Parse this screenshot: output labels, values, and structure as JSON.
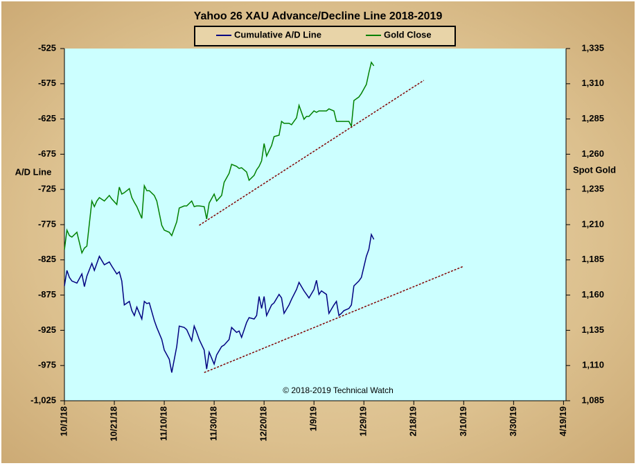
{
  "chart_data": {
    "type": "line",
    "title": "Yahoo 26 XAU Advance/Decline  Line 2018-2019",
    "ylabel": "A/D Line",
    "y2label": "Spot Gold",
    "annotation": "© 2018-2019  Technical Watch",
    "x": [
      "10/1/18",
      "10/2/18",
      "10/3/18",
      "10/4/18",
      "10/6/18",
      "10/8/18",
      "10/9/18",
      "10/10/18",
      "10/12/18",
      "10/13/18",
      "10/14/18",
      "10/15/18",
      "10/17/18",
      "10/19/18",
      "10/20/18",
      "10/22/18",
      "10/23/18",
      "10/24/18",
      "10/25/18",
      "10/27/18",
      "10/28/18",
      "10/29/18",
      "10/30/18",
      "11/1/18",
      "11/2/18",
      "11/3/18",
      "11/4/18",
      "11/6/18",
      "11/7/18",
      "11/9/18",
      "11/10/18",
      "11/12/18",
      "11/13/18",
      "11/15/18",
      "11/16/18",
      "11/18/18",
      "11/19/18",
      "11/21/18",
      "11/22/18",
      "11/23/18",
      "11/24/18",
      "11/26/18",
      "11/27/18",
      "11/28/18",
      "11/30/18",
      "12/1/18",
      "12/3/18",
      "12/4/18",
      "12/6/18",
      "12/7/18",
      "12/9/18",
      "12/10/18",
      "12/11/18",
      "12/13/18",
      "12/14/18",
      "12/16/18",
      "12/17/18",
      "12/18/18",
      "12/19/18",
      "12/20/18",
      "12/21/18",
      "12/23/18",
      "12/24/18",
      "12/26/18",
      "12/27/18",
      "12/28/18",
      "12/30/18",
      "12/31/18",
      "1/2/19",
      "1/3/19",
      "1/5/19",
      "1/6/19",
      "1/7/19",
      "1/9/19",
      "1/10/19",
      "1/11/19",
      "1/12/19",
      "1/14/19",
      "1/15/19",
      "1/17/19",
      "1/18/19",
      "1/19/19",
      "1/20/19",
      "1/21/19",
      "1/23/19",
      "1/24/19",
      "1/25/19",
      "1/27/19",
      "1/28/19",
      "1/30/19",
      "1/31/19",
      "2/1/19",
      "2/2/19"
    ],
    "series": [
      {
        "name": "Cumulative A/D Line",
        "color": "#000080",
        "axis": "y",
        "values": [
          -862,
          -840,
          -850,
          -855,
          -858,
          -845,
          -863,
          -848,
          -830,
          -840,
          -830,
          -820,
          -832,
          -828,
          -834,
          -845,
          -842,
          -855,
          -889,
          -884,
          -897,
          -904,
          -892,
          -909,
          -884,
          -887,
          -886,
          -911,
          -921,
          -938,
          -953,
          -966,
          -985,
          -948,
          -919,
          -921,
          -924,
          -940,
          -919,
          -928,
          -938,
          -953,
          -980,
          -956,
          -973,
          -960,
          -948,
          -946,
          -938,
          -921,
          -928,
          -926,
          -935,
          -914,
          -907,
          -909,
          -904,
          -877,
          -894,
          -877,
          -904,
          -889,
          -886,
          -874,
          -879,
          -901,
          -889,
          -881,
          -867,
          -857,
          -869,
          -874,
          -879,
          -867,
          -854,
          -874,
          -869,
          -874,
          -901,
          -889,
          -884,
          -904,
          -901,
          -897,
          -894,
          -889,
          -862,
          -855,
          -850,
          -820,
          -810,
          -789,
          -796
        ]
      },
      {
        "name": "Gold Close",
        "color": "#008000",
        "axis": "y2",
        "values": [
          1192.3,
          1206.1,
          1202.2,
          1201.2,
          1204.6,
          1189.9,
          1193.3,
          1194.8,
          1226.8,
          1222.8,
          1226.8,
          1229.2,
          1226.8,
          1230.7,
          1228.2,
          1224.3,
          1236.6,
          1231.7,
          1232.7,
          1235.6,
          1229.2,
          1225.8,
          1222.8,
          1214.5,
          1237.6,
          1234.1,
          1234.1,
          1230.7,
          1226.8,
          1209.5,
          1206.1,
          1204.6,
          1202.2,
          1212.0,
          1221.8,
          1223.3,
          1223.3,
          1226.8,
          1222.8,
          1223.3,
          1223.3,
          1222.8,
          1214.0,
          1225.3,
          1231.7,
          1226.8,
          1230.7,
          1240.0,
          1246.4,
          1252.8,
          1251.4,
          1249.9,
          1250.4,
          1247.4,
          1241.5,
          1245.0,
          1248.9,
          1251.4,
          1255.3,
          1267.6,
          1258.7,
          1266.1,
          1272.5,
          1273.5,
          1283.3,
          1281.9,
          1281.9,
          1280.9,
          1285.8,
          1294.7,
          1284.8,
          1286.8,
          1286.8,
          1290.7,
          1289.7,
          1290.7,
          1290.7,
          1290.7,
          1292.2,
          1290.7,
          1283.3,
          1283.3,
          1283.3,
          1283.3,
          1283.3,
          1279.9,
          1298.1,
          1300.6,
          1303.1,
          1309.5,
          1317.8,
          1325.2,
          1322.7
        ]
      }
    ],
    "trend_lines": [
      {
        "axis": "y",
        "color": "#800000",
        "x": [
          "11/26/18",
          "3/10/19"
        ],
        "values": [
          -985,
          -834
        ]
      },
      {
        "axis": "y2",
        "color": "#800000",
        "x": [
          "11/24/18",
          "2/22/19"
        ],
        "values": [
          1209.5,
          1312.4
        ]
      }
    ],
    "xlim": [
      "10/1/18",
      "4/20/19"
    ],
    "xticks": [
      "10/1/18",
      "10/21/18",
      "11/10/18",
      "11/30/18",
      "12/20/18",
      "1/9/19",
      "1/29/19",
      "2/18/19",
      "3/10/19",
      "3/30/19",
      "4/19/19"
    ],
    "ylim": [
      -1025,
      -525
    ],
    "yticks": [
      {
        "value": -1025,
        "label": "-1,025"
      },
      -975,
      -925,
      -875,
      -825,
      -775,
      -725,
      -675,
      -625,
      -575,
      -525
    ],
    "y2lim": [
      1085,
      1335
    ],
    "y2ticks": [
      {
        "value": 1085,
        "label": "1,085"
      },
      {
        "value": 1110,
        "label": "1,110"
      },
      {
        "value": 1135,
        "label": "1,135"
      },
      {
        "value": 1160,
        "label": "1,160"
      },
      {
        "value": 1185,
        "label": "1,185"
      },
      {
        "value": 1210,
        "label": "1,210"
      },
      {
        "value": 1235,
        "label": "1,235"
      },
      {
        "value": 1260,
        "label": "1,260"
      },
      {
        "value": 1285,
        "label": "1,285"
      },
      {
        "value": 1310,
        "label": "1,310"
      },
      {
        "value": 1335,
        "label": "1,335"
      }
    ],
    "plot_background": "#ccffff",
    "grid": false
  }
}
